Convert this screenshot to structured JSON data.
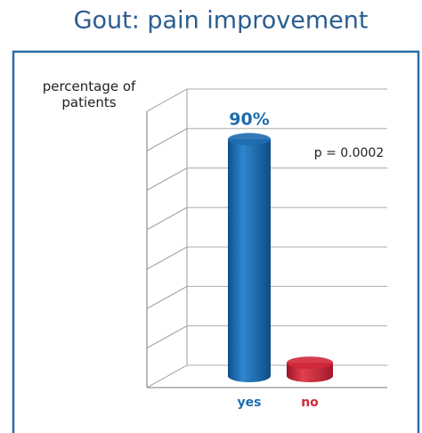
{
  "chart_data": {
    "type": "bar3d",
    "title": "Gout: pain improvement",
    "y_label": "percentage of patients",
    "annotation": "p = 0.0002",
    "categories": [
      "yes",
      "no"
    ],
    "values": [
      90,
      5
    ],
    "value_labels": [
      "90%",
      null
    ],
    "colors": [
      "#1f6bb0",
      "#d0283a"
    ],
    "ylim": [
      0,
      105
    ],
    "yticks": [
      0,
      15,
      30,
      45,
      60,
      75,
      90,
      105
    ],
    "grid": true
  }
}
